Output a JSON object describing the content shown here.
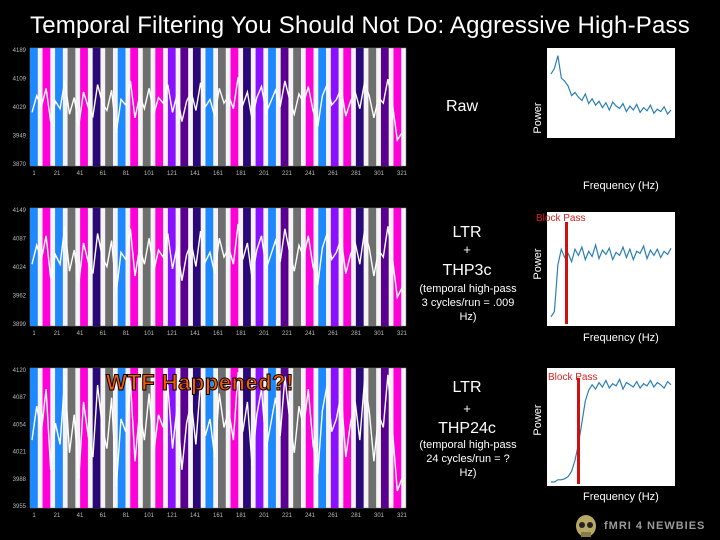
{
  "title": "Temporal Filtering You Should Not Do: Aggressive High-Pass",
  "panels": [
    {
      "label_main": "Raw",
      "label_plus": "",
      "label_filter": "",
      "label_sub": "",
      "y_ticks": [
        "4189",
        "4109",
        "4029",
        "3949",
        "3870"
      ],
      "x_ticks": [
        "1",
        "21",
        "41",
        "61",
        "81",
        "101",
        "121",
        "141",
        "161",
        "181",
        "201",
        "221",
        "241",
        "261",
        "281",
        "301",
        "321"
      ],
      "block_pass": "",
      "power_label": "Power",
      "freq_label": "Frequency (Hz)"
    },
    {
      "label_main": "LTR",
      "label_plus": "+",
      "label_filter": "THP3c",
      "label_sub": "(temporal high-pass 3 cycles/run = .009 Hz)",
      "y_ticks": [
        "4149",
        "4087",
        "4024",
        "3962",
        "3899"
      ],
      "x_ticks": [
        "1",
        "21",
        "41",
        "61",
        "81",
        "101",
        "121",
        "141",
        "161",
        "181",
        "201",
        "221",
        "241",
        "261",
        "281",
        "301",
        "321"
      ],
      "block_pass": "Block   Pass",
      "power_label": "Power",
      "freq_label": "Frequency (Hz)"
    },
    {
      "label_main": "LTR",
      "label_plus": "+",
      "label_filter": "THP24c",
      "label_sub": "(temporal high-pass 24 cycles/run = ? Hz)",
      "y_ticks": [
        "4120",
        "4087",
        "4054",
        "4021",
        "3988",
        "3955"
      ],
      "x_ticks": [
        "1",
        "21",
        "41",
        "61",
        "81",
        "101",
        "121",
        "141",
        "161",
        "181",
        "201",
        "221",
        "241",
        "261",
        "281",
        "301",
        "321"
      ],
      "block_pass": "Block   Pass",
      "power_label": "Power",
      "freq_label": "Frequency (Hz)"
    }
  ],
  "annotation": "WTF Happened?!",
  "logo_text": "fMRI 4 NEWBIES",
  "colors": {
    "background": "#000000",
    "timecourse": "#ffffff",
    "spectrum": "#2a7fb5",
    "cutoff": "#d01010",
    "annotation": "#ff5a00"
  },
  "condition_colors": [
    "#1e88ff",
    "#ff00d8",
    "#6e6e6e",
    "#2a0878",
    "#8a10ff",
    "#5a0090"
  ],
  "condition_sequence": [
    0,
    1,
    0,
    2,
    1,
    3,
    2,
    0,
    1,
    2,
    1,
    4,
    5,
    3,
    0,
    2,
    1,
    3,
    4,
    0,
    5,
    2,
    1,
    0,
    4,
    1,
    3,
    2,
    5,
    1
  ],
  "chart_data": [
    {
      "type": "line",
      "title": "Raw",
      "x_range": [
        1,
        330
      ],
      "ylim": [
        3870,
        4189
      ],
      "series": [
        {
          "values": [
            4015,
            4060,
            4030,
            4080,
            3990,
            4045,
            4025,
            4100,
            4010,
            4055,
            3980,
            4070,
            4030,
            4005,
            4090,
            4040,
            4020,
            4075,
            3960,
            4050,
            4035,
            4100,
            4000,
            4060,
            4025,
            4080,
            4010,
            4055,
            4040,
            4090,
            4015,
            4065,
            3990,
            4045,
            4070,
            4020,
            4095,
            4030,
            4050,
            4005,
            4080,
            4040,
            4060,
            4025,
            4110,
            4035,
            4070,
            3995,
            4055,
            4085,
            4015,
            4045,
            4075,
            4030,
            4100,
            4050,
            4010,
            4065,
            4040,
            4085,
            4020,
            3975,
            4060,
            4090,
            4035,
            4050,
            4080,
            4005,
            4045,
            4070,
            4025,
            4095,
            4060,
            4000,
            4055,
            4040,
            4105,
            4035,
            3940,
            3960
          ]
        }
      ],
      "spectrum": {
        "values": [
          0.75,
          0.82,
          0.98,
          0.7,
          0.66,
          0.6,
          0.48,
          0.52,
          0.46,
          0.42,
          0.5,
          0.38,
          0.44,
          0.36,
          0.41,
          0.33,
          0.39,
          0.3,
          0.4,
          0.35,
          0.32,
          0.38,
          0.28,
          0.35,
          0.3,
          0.37,
          0.27,
          0.33,
          0.29,
          0.36,
          0.26,
          0.31,
          0.28,
          0.34,
          0.25,
          0.3
        ]
      },
      "cutoff": null
    },
    {
      "type": "line",
      "title": "LTR + THP3c",
      "x_range": [
        1,
        330
      ],
      "ylim": [
        3899,
        4149
      ],
      "series": [
        {
          "values": [
            4030,
            4070,
            4040,
            4090,
            4000,
            4050,
            4030,
            4110,
            4015,
            4060,
            3990,
            4075,
            4035,
            4010,
            4095,
            4045,
            4025,
            4080,
            3970,
            4055,
            4040,
            4105,
            4005,
            4065,
            4030,
            4085,
            4015,
            4060,
            4045,
            4095,
            4020,
            4070,
            3995,
            4050,
            4075,
            4025,
            4100,
            4035,
            4055,
            4010,
            4085,
            4045,
            4065,
            4030,
            4115,
            4040,
            4075,
            4000,
            4060,
            4090,
            4020,
            4050,
            4080,
            4035,
            4105,
            4055,
            4015,
            4070,
            4045,
            4090,
            4025,
            3985,
            4065,
            4095,
            4040,
            4055,
            4085,
            4010,
            4050,
            4075,
            4030,
            4100,
            4065,
            4005,
            4060,
            4045,
            4110,
            4040,
            3960,
            3980
          ]
        }
      ],
      "spectrum": {
        "values": [
          0.05,
          0.1,
          0.55,
          0.7,
          0.62,
          0.66,
          0.58,
          0.7,
          0.64,
          0.72,
          0.6,
          0.68,
          0.63,
          0.74,
          0.61,
          0.69,
          0.65,
          0.71,
          0.6,
          0.67,
          0.64,
          0.72,
          0.62,
          0.7,
          0.6,
          0.68,
          0.66,
          0.73,
          0.61,
          0.69,
          0.64,
          0.7,
          0.62,
          0.68,
          0.65,
          0.71
        ]
      },
      "cutoff": 0.009
    },
    {
      "type": "line",
      "title": "LTR + THP24c",
      "x_range": [
        1,
        330
      ],
      "ylim": [
        3955,
        4120
      ],
      "series": [
        {
          "values": [
            4035,
            4075,
            4045,
            4095,
            4000,
            4055,
            4030,
            4110,
            4020,
            4065,
            3990,
            4080,
            4040,
            4015,
            4100,
            4050,
            4025,
            4085,
            3980,
            4060,
            4045,
            4105,
            4010,
            4070,
            4035,
            4090,
            4020,
            4065,
            4050,
            4100,
            4025,
            4075,
            4000,
            4055,
            4080,
            4030,
            4105,
            4040,
            4060,
            4015,
            4090,
            4050,
            4070,
            4035,
            4115,
            4045,
            4080,
            4005,
            4065,
            4095,
            4025,
            4055,
            4085,
            4040,
            4110,
            4060,
            4020,
            4075,
            4050,
            4095,
            4030,
            3995,
            4070,
            4100,
            4045,
            4060,
            4090,
            4015,
            4055,
            4080,
            4035,
            4105,
            4070,
            4010,
            4065,
            4050,
            4112,
            4045,
            3975,
            3990
          ]
        }
      ],
      "spectrum": {
        "values": [
          0.0,
          0.0,
          0.02,
          0.02,
          0.03,
          0.05,
          0.1,
          0.2,
          0.35,
          0.55,
          0.75,
          0.85,
          0.9,
          0.86,
          0.92,
          0.88,
          0.94,
          0.87,
          0.91,
          0.89,
          0.95,
          0.86,
          0.92,
          0.9,
          0.88,
          0.93,
          0.87,
          0.91,
          0.89,
          0.94,
          0.88,
          0.92,
          0.9,
          0.87,
          0.93,
          0.9
        ]
      },
      "cutoff": "?"
    }
  ]
}
